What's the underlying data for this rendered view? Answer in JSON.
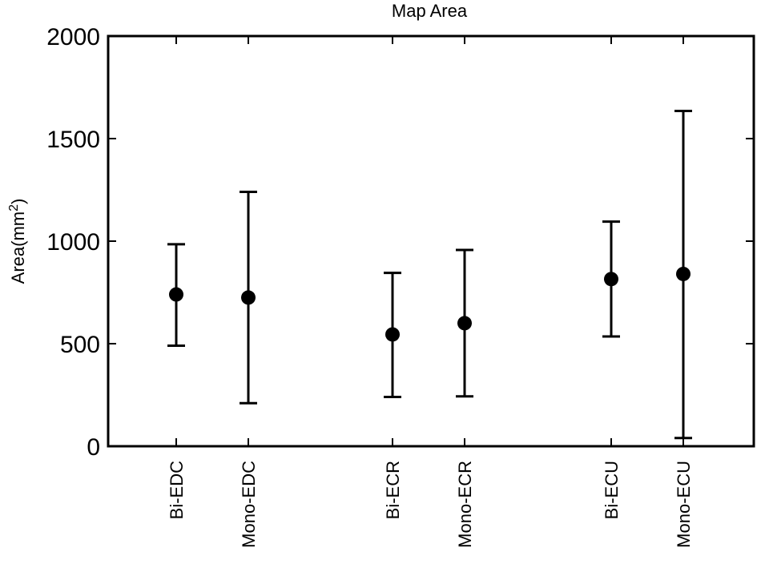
{
  "chart_data": {
    "type": "scatter",
    "title": "Map Area",
    "ylabel": "Area(mm",
    "ylabel_superscript": "2",
    "ylabel_suffix": ")",
    "ylim": [
      0,
      2000
    ],
    "yticks": [
      0,
      500,
      1000,
      1500,
      2000
    ],
    "categories": [
      "Bi-EDC",
      "Mono-EDC",
      "Bi-ECR",
      "Mono-ECR",
      "Bi-ECU",
      "Mono-ECU"
    ],
    "points": [
      {
        "category": "Bi-EDC",
        "mean": 740,
        "lower": 490,
        "upper": 985
      },
      {
        "category": "Mono-EDC",
        "mean": 725,
        "lower": 210,
        "upper": 1240
      },
      {
        "category": "Bi-ECR",
        "mean": 545,
        "lower": 240,
        "upper": 845
      },
      {
        "category": "Mono-ECR",
        "mean": 600,
        "lower": 243,
        "upper": 957
      },
      {
        "category": "Bi-ECU",
        "mean": 815,
        "lower": 535,
        "upper": 1095
      },
      {
        "category": "Mono-ECU",
        "mean": 840,
        "lower": 40,
        "upper": 1635
      }
    ],
    "grid": false,
    "legend": "none"
  }
}
